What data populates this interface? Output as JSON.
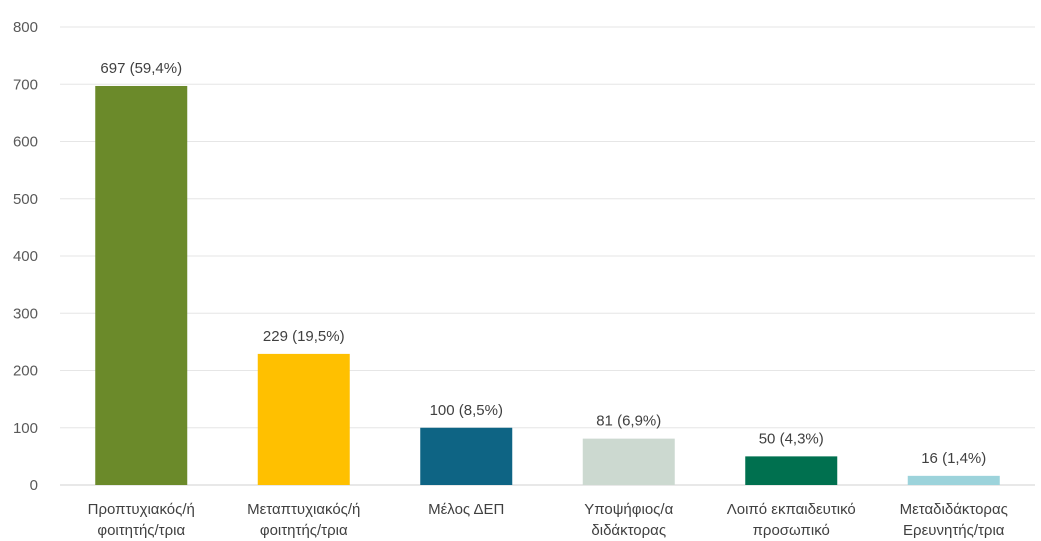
{
  "chart_data": {
    "type": "bar",
    "title": "",
    "xlabel": "",
    "ylabel": "",
    "ylim": [
      0,
      800
    ],
    "yticks": [
      0,
      100,
      200,
      300,
      400,
      500,
      600,
      700,
      800
    ],
    "grid": true,
    "legend": "none",
    "categories": [
      [
        "Προπτυχιακός/ή",
        "φοιτητής/τρια"
      ],
      [
        "Μεταπτυχιακός/ή",
        "φοιτητής/τρια"
      ],
      [
        "Μέλος ΔΕΠ"
      ],
      [
        "Υποψήφιος/α",
        "διδάκτορας"
      ],
      [
        "Λοιπό εκπαιδευτικό",
        "προσωπικό"
      ],
      [
        "Μεταδιδάκτορας",
        "Ερευνητής/τρια"
      ]
    ],
    "values": [
      697,
      229,
      100,
      81,
      50,
      16
    ],
    "data_labels": [
      "697 (59,4%)",
      "229 (19,5%)",
      "100 (8,5%)",
      "81 (6,9%)",
      "50 (4,3%)",
      "16 (1,4%)"
    ],
    "colors": [
      "#6b8a2a",
      "#ffc000",
      "#0e6484",
      "#ccd9d0",
      "#00704f",
      "#9cd3db"
    ]
  }
}
